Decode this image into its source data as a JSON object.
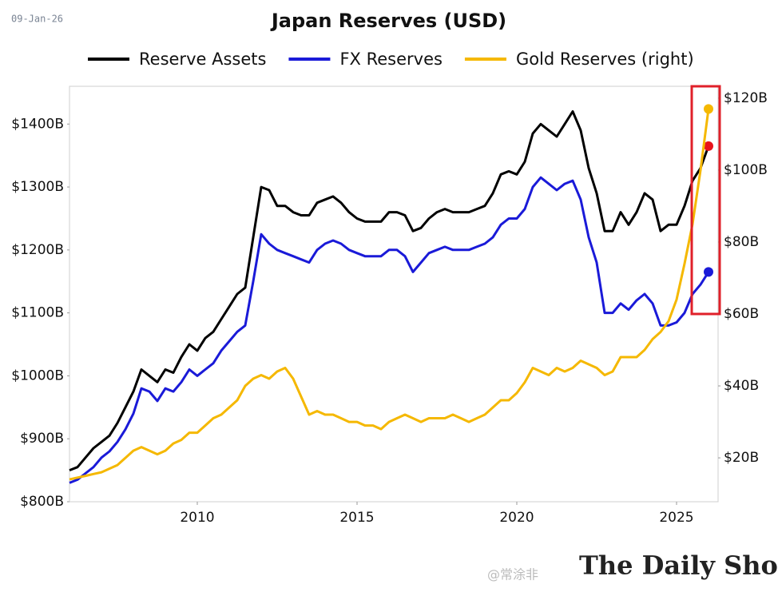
{
  "date": "09-Jan-26",
  "brand": "The Daily Shot®",
  "watermark": "@常涂非",
  "chart_data": {
    "type": "line",
    "title": "Japan Reserves (USD)",
    "x": [
      2006,
      2006.25,
      2006.5,
      2006.75,
      2007,
      2007.25,
      2007.5,
      2007.75,
      2008,
      2008.25,
      2008.5,
      2008.75,
      2009,
      2009.25,
      2009.5,
      2009.75,
      2010,
      2010.25,
      2010.5,
      2010.75,
      2011,
      2011.25,
      2011.5,
      2011.75,
      2012,
      2012.25,
      2012.5,
      2012.75,
      2013,
      2013.25,
      2013.5,
      2013.75,
      2014,
      2014.25,
      2014.5,
      2014.75,
      2015,
      2015.25,
      2015.5,
      2015.75,
      2016,
      2016.25,
      2016.5,
      2016.75,
      2017,
      2017.25,
      2017.5,
      2017.75,
      2018,
      2018.25,
      2018.5,
      2018.75,
      2019,
      2019.25,
      2019.5,
      2019.75,
      2020,
      2020.25,
      2020.5,
      2020.75,
      2021,
      2021.25,
      2021.5,
      2021.75,
      2022,
      2022.25,
      2022.5,
      2022.75,
      2023,
      2023.25,
      2023.5,
      2023.75,
      2024,
      2024.25,
      2024.5,
      2024.75,
      2025,
      2025.25,
      2025.5,
      2025.75,
      2026
    ],
    "series": [
      {
        "name": "Reserve Assets",
        "color": "#000000",
        "end_color": "#e8131b",
        "values": [
          850,
          855,
          870,
          885,
          895,
          905,
          925,
          950,
          975,
          1010,
          1000,
          990,
          1010,
          1005,
          1030,
          1050,
          1040,
          1060,
          1070,
          1090,
          1110,
          1130,
          1140,
          1220,
          1300,
          1295,
          1270,
          1270,
          1260,
          1255,
          1255,
          1275,
          1280,
          1285,
          1275,
          1260,
          1250,
          1245,
          1245,
          1245,
          1260,
          1260,
          1255,
          1230,
          1235,
          1250,
          1260,
          1265,
          1260,
          1260,
          1260,
          1265,
          1270,
          1290,
          1320,
          1325,
          1320,
          1340,
          1385,
          1400,
          1390,
          1380,
          1400,
          1420,
          1390,
          1330,
          1290,
          1230,
          1230,
          1260,
          1240,
          1260,
          1290,
          1280,
          1230,
          1240,
          1240,
          1270,
          1310,
          1330,
          1365
        ]
      },
      {
        "name": "FX Reserves",
        "color": "#1a1ad8",
        "end_color": "#1a1ad8",
        "values": [
          830,
          835,
          845,
          855,
          870,
          880,
          895,
          915,
          940,
          980,
          975,
          960,
          980,
          975,
          990,
          1010,
          1000,
          1010,
          1020,
          1040,
          1055,
          1070,
          1080,
          1150,
          1225,
          1210,
          1200,
          1195,
          1190,
          1185,
          1180,
          1200,
          1210,
          1215,
          1210,
          1200,
          1195,
          1190,
          1190,
          1190,
          1200,
          1200,
          1190,
          1165,
          1180,
          1195,
          1200,
          1205,
          1200,
          1200,
          1200,
          1205,
          1210,
          1220,
          1240,
          1250,
          1250,
          1265,
          1300,
          1315,
          1305,
          1295,
          1305,
          1310,
          1280,
          1220,
          1180,
          1100,
          1100,
          1115,
          1105,
          1120,
          1130,
          1115,
          1080,
          1080,
          1085,
          1100,
          1130,
          1145,
          1165
        ]
      },
      {
        "name": "Gold Reserves (right)",
        "color": "#f5b800",
        "end_color": "#f5b800",
        "axis": "y2",
        "values": [
          14,
          14.5,
          15,
          15.5,
          16,
          17,
          18,
          20,
          22,
          23,
          22,
          21,
          22,
          24,
          25,
          27,
          27,
          29,
          31,
          32,
          34,
          36,
          40,
          42,
          43,
          42,
          44,
          45,
          42,
          37,
          32,
          33,
          32,
          32,
          31,
          30,
          30,
          29,
          29,
          28,
          30,
          31,
          32,
          31,
          30,
          31,
          31,
          31,
          32,
          31,
          30,
          31,
          32,
          34,
          36,
          36,
          38,
          41,
          45,
          44,
          43,
          45,
          44,
          45,
          47,
          46,
          45,
          43,
          44,
          48,
          48,
          48,
          50,
          53,
          55,
          58,
          64,
          74,
          85,
          100,
          117
        ]
      }
    ],
    "xlim": [
      2006,
      2026.3
    ],
    "xticks": [
      2010,
      2015,
      2020,
      2025
    ],
    "ylim": [
      800,
      1460
    ],
    "yticks": [
      {
        "value": 800,
        "label": "$800B"
      },
      {
        "value": 900,
        "label": "$900B"
      },
      {
        "value": 1000,
        "label": "$1000B"
      },
      {
        "value": 1100,
        "label": "$1100B"
      },
      {
        "value": 1200,
        "label": "$1200B"
      },
      {
        "value": 1300,
        "label": "$1300B"
      },
      {
        "value": 1400,
        "label": "$1400B"
      }
    ],
    "y2lim": [
      7.8,
      123.3
    ],
    "y2ticks": [
      {
        "value": 20,
        "label": "$20B"
      },
      {
        "value": 40,
        "label": "$40B"
      },
      {
        "value": 60,
        "label": "$60B"
      },
      {
        "value": 80,
        "label": "$80B"
      },
      {
        "value": 100,
        "label": "$100B"
      },
      {
        "value": 120,
        "label": "$120B"
      }
    ],
    "y2_color": "#f5b800",
    "highlight_color": "#e0202a"
  }
}
